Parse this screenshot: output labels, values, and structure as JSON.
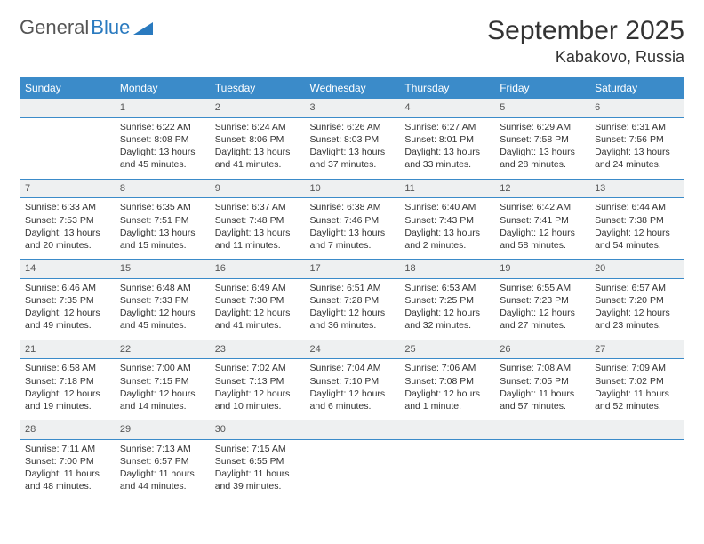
{
  "brand": {
    "part1": "General",
    "part2": "Blue"
  },
  "title": "September 2025",
  "location": "Kabakovo, Russia",
  "colors": {
    "header_bg": "#3b8bc9",
    "header_fg": "#ffffff",
    "date_row_bg": "#eef0f1",
    "border": "#3b8bc9",
    "text": "#333333",
    "brand_gray": "#555555",
    "brand_blue": "#2a7abf"
  },
  "day_headers": [
    "Sunday",
    "Monday",
    "Tuesday",
    "Wednesday",
    "Thursday",
    "Friday",
    "Saturday"
  ],
  "weeks": [
    {
      "dates": [
        "",
        "1",
        "2",
        "3",
        "4",
        "5",
        "6"
      ],
      "cells": [
        [],
        [
          "Sunrise: 6:22 AM",
          "Sunset: 8:08 PM",
          "Daylight: 13 hours and 45 minutes."
        ],
        [
          "Sunrise: 6:24 AM",
          "Sunset: 8:06 PM",
          "Daylight: 13 hours and 41 minutes."
        ],
        [
          "Sunrise: 6:26 AM",
          "Sunset: 8:03 PM",
          "Daylight: 13 hours and 37 minutes."
        ],
        [
          "Sunrise: 6:27 AM",
          "Sunset: 8:01 PM",
          "Daylight: 13 hours and 33 minutes."
        ],
        [
          "Sunrise: 6:29 AM",
          "Sunset: 7:58 PM",
          "Daylight: 13 hours and 28 minutes."
        ],
        [
          "Sunrise: 6:31 AM",
          "Sunset: 7:56 PM",
          "Daylight: 13 hours and 24 minutes."
        ]
      ]
    },
    {
      "dates": [
        "7",
        "8",
        "9",
        "10",
        "11",
        "12",
        "13"
      ],
      "cells": [
        [
          "Sunrise: 6:33 AM",
          "Sunset: 7:53 PM",
          "Daylight: 13 hours and 20 minutes."
        ],
        [
          "Sunrise: 6:35 AM",
          "Sunset: 7:51 PM",
          "Daylight: 13 hours and 15 minutes."
        ],
        [
          "Sunrise: 6:37 AM",
          "Sunset: 7:48 PM",
          "Daylight: 13 hours and 11 minutes."
        ],
        [
          "Sunrise: 6:38 AM",
          "Sunset: 7:46 PM",
          "Daylight: 13 hours and 7 minutes."
        ],
        [
          "Sunrise: 6:40 AM",
          "Sunset: 7:43 PM",
          "Daylight: 13 hours and 2 minutes."
        ],
        [
          "Sunrise: 6:42 AM",
          "Sunset: 7:41 PM",
          "Daylight: 12 hours and 58 minutes."
        ],
        [
          "Sunrise: 6:44 AM",
          "Sunset: 7:38 PM",
          "Daylight: 12 hours and 54 minutes."
        ]
      ]
    },
    {
      "dates": [
        "14",
        "15",
        "16",
        "17",
        "18",
        "19",
        "20"
      ],
      "cells": [
        [
          "Sunrise: 6:46 AM",
          "Sunset: 7:35 PM",
          "Daylight: 12 hours and 49 minutes."
        ],
        [
          "Sunrise: 6:48 AM",
          "Sunset: 7:33 PM",
          "Daylight: 12 hours and 45 minutes."
        ],
        [
          "Sunrise: 6:49 AM",
          "Sunset: 7:30 PM",
          "Daylight: 12 hours and 41 minutes."
        ],
        [
          "Sunrise: 6:51 AM",
          "Sunset: 7:28 PM",
          "Daylight: 12 hours and 36 minutes."
        ],
        [
          "Sunrise: 6:53 AM",
          "Sunset: 7:25 PM",
          "Daylight: 12 hours and 32 minutes."
        ],
        [
          "Sunrise: 6:55 AM",
          "Sunset: 7:23 PM",
          "Daylight: 12 hours and 27 minutes."
        ],
        [
          "Sunrise: 6:57 AM",
          "Sunset: 7:20 PM",
          "Daylight: 12 hours and 23 minutes."
        ]
      ]
    },
    {
      "dates": [
        "21",
        "22",
        "23",
        "24",
        "25",
        "26",
        "27"
      ],
      "cells": [
        [
          "Sunrise: 6:58 AM",
          "Sunset: 7:18 PM",
          "Daylight: 12 hours and 19 minutes."
        ],
        [
          "Sunrise: 7:00 AM",
          "Sunset: 7:15 PM",
          "Daylight: 12 hours and 14 minutes."
        ],
        [
          "Sunrise: 7:02 AM",
          "Sunset: 7:13 PM",
          "Daylight: 12 hours and 10 minutes."
        ],
        [
          "Sunrise: 7:04 AM",
          "Sunset: 7:10 PM",
          "Daylight: 12 hours and 6 minutes."
        ],
        [
          "Sunrise: 7:06 AM",
          "Sunset: 7:08 PM",
          "Daylight: 12 hours and 1 minute."
        ],
        [
          "Sunrise: 7:08 AM",
          "Sunset: 7:05 PM",
          "Daylight: 11 hours and 57 minutes."
        ],
        [
          "Sunrise: 7:09 AM",
          "Sunset: 7:02 PM",
          "Daylight: 11 hours and 52 minutes."
        ]
      ]
    },
    {
      "dates": [
        "28",
        "29",
        "30",
        "",
        "",
        "",
        ""
      ],
      "cells": [
        [
          "Sunrise: 7:11 AM",
          "Sunset: 7:00 PM",
          "Daylight: 11 hours and 48 minutes."
        ],
        [
          "Sunrise: 7:13 AM",
          "Sunset: 6:57 PM",
          "Daylight: 11 hours and 44 minutes."
        ],
        [
          "Sunrise: 7:15 AM",
          "Sunset: 6:55 PM",
          "Daylight: 11 hours and 39 minutes."
        ],
        [],
        [],
        [],
        []
      ]
    }
  ]
}
